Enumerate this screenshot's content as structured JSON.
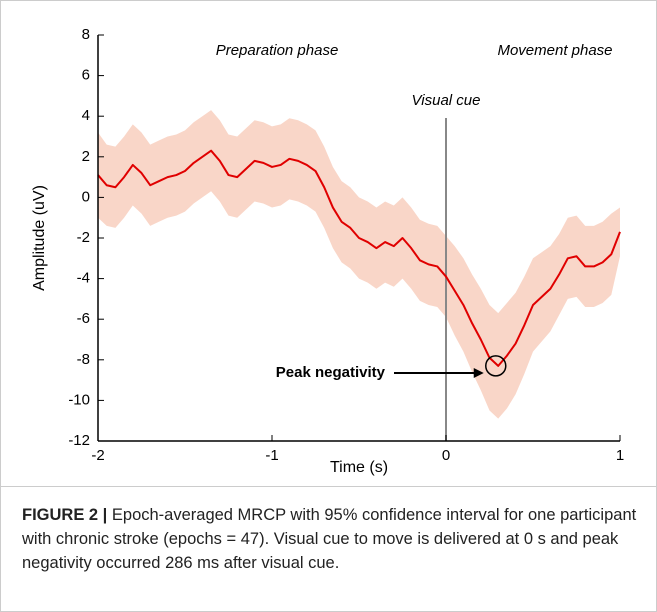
{
  "chart_data": {
    "type": "line",
    "xlabel": "Time (s)",
    "ylabel": "Amplitude (uV)",
    "annotations": [
      "Preparation phase",
      "Movement phase",
      "Visual cue",
      "Peak negativity"
    ],
    "vline": 0,
    "peak_marker": {
      "x": 0.286,
      "y": -8.3
    },
    "color": "#e00000",
    "band_color": "#f9d6c8",
    "x": [
      -2,
      -1.95,
      -1.9,
      -1.85,
      -1.8,
      -1.75,
      -1.7,
      -1.65,
      -1.6,
      -1.55,
      -1.5,
      -1.45,
      -1.4,
      -1.35,
      -1.3,
      -1.25,
      -1.2,
      -1.15,
      -1.1,
      -1.05,
      -1.0,
      -0.95,
      -0.9,
      -0.85,
      -0.8,
      -0.75,
      -0.7,
      -0.65,
      -0.6,
      -0.55,
      -0.5,
      -0.45,
      -0.4,
      -0.35,
      -0.3,
      -0.25,
      -0.2,
      -0.15,
      -0.1,
      -0.05,
      0,
      0.05,
      0.1,
      0.15,
      0.2,
      0.25,
      0.3,
      0.35,
      0.4,
      0.45,
      0.5,
      0.55,
      0.6,
      0.65,
      0.7,
      0.75,
      0.8,
      0.85,
      0.9,
      0.95,
      1.0
    ],
    "values": [
      1.1,
      0.6,
      0.5,
      1.0,
      1.6,
      1.2,
      0.6,
      0.8,
      1.0,
      1.1,
      1.3,
      1.7,
      2.0,
      2.3,
      1.8,
      1.1,
      1.0,
      1.4,
      1.8,
      1.7,
      1.5,
      1.6,
      1.9,
      1.8,
      1.6,
      1.3,
      0.5,
      -0.5,
      -1.2,
      -1.5,
      -2.0,
      -2.2,
      -2.5,
      -2.2,
      -2.4,
      -2.0,
      -2.5,
      -3.1,
      -3.3,
      -3.4,
      -3.9,
      -4.6,
      -5.3,
      -6.2,
      -7.0,
      -7.9,
      -8.3,
      -7.8,
      -7.2,
      -6.3,
      -5.3,
      -4.9,
      -4.5,
      -3.8,
      -3.0,
      -2.9,
      -3.4,
      -3.4,
      -3.2,
      -2.8,
      -1.7
    ],
    "upper": [
      3.2,
      2.6,
      2.5,
      3.0,
      3.6,
      3.2,
      2.6,
      2.8,
      3.0,
      3.1,
      3.3,
      3.7,
      4.0,
      4.3,
      3.8,
      3.1,
      3.0,
      3.4,
      3.8,
      3.7,
      3.5,
      3.6,
      3.9,
      3.8,
      3.6,
      3.3,
      2.5,
      1.5,
      0.8,
      0.5,
      0.0,
      -0.2,
      -0.5,
      -0.2,
      -0.4,
      0.0,
      -0.5,
      -1.1,
      -1.3,
      -1.4,
      -1.9,
      -2.4,
      -3.0,
      -3.8,
      -4.5,
      -5.3,
      -5.7,
      -5.2,
      -4.7,
      -3.9,
      -3.0,
      -2.7,
      -2.4,
      -1.8,
      -1.0,
      -0.9,
      -1.4,
      -1.4,
      -1.2,
      -0.8,
      -0.5
    ],
    "lower": [
      -1.0,
      -1.4,
      -1.5,
      -1.0,
      -0.4,
      -0.8,
      -1.4,
      -1.2,
      -1.0,
      -0.9,
      -0.7,
      -0.3,
      0.0,
      0.3,
      -0.2,
      -0.9,
      -1.0,
      -0.6,
      -0.2,
      -0.3,
      -0.5,
      -0.4,
      -0.1,
      -0.2,
      -0.4,
      -0.7,
      -1.5,
      -2.5,
      -3.2,
      -3.5,
      -4.0,
      -4.2,
      -4.5,
      -4.2,
      -4.4,
      -4.0,
      -4.5,
      -5.1,
      -5.3,
      -5.4,
      -5.9,
      -6.8,
      -7.6,
      -8.6,
      -9.5,
      -10.5,
      -10.9,
      -10.4,
      -9.7,
      -8.7,
      -7.6,
      -7.1,
      -6.6,
      -5.8,
      -5.0,
      -4.9,
      -5.4,
      -5.4,
      -5.2,
      -4.8,
      -2.9
    ],
    "xlim": [
      -2,
      1
    ],
    "xticks": [
      -2,
      -1,
      0,
      1
    ],
    "ylim": [
      -12,
      8
    ],
    "yticks": [
      -12,
      -10,
      -8,
      -6,
      -4,
      -2,
      0,
      2,
      4,
      6,
      8
    ]
  },
  "caption": {
    "label": "FIGURE 2 |",
    "text": "Epoch-averaged MRCP with 95% confidence interval for one participant with chronic stroke (epochs = 47). Visual cue to move is delivered at 0 s and peak negativity occurred 286 ms after visual cue."
  }
}
